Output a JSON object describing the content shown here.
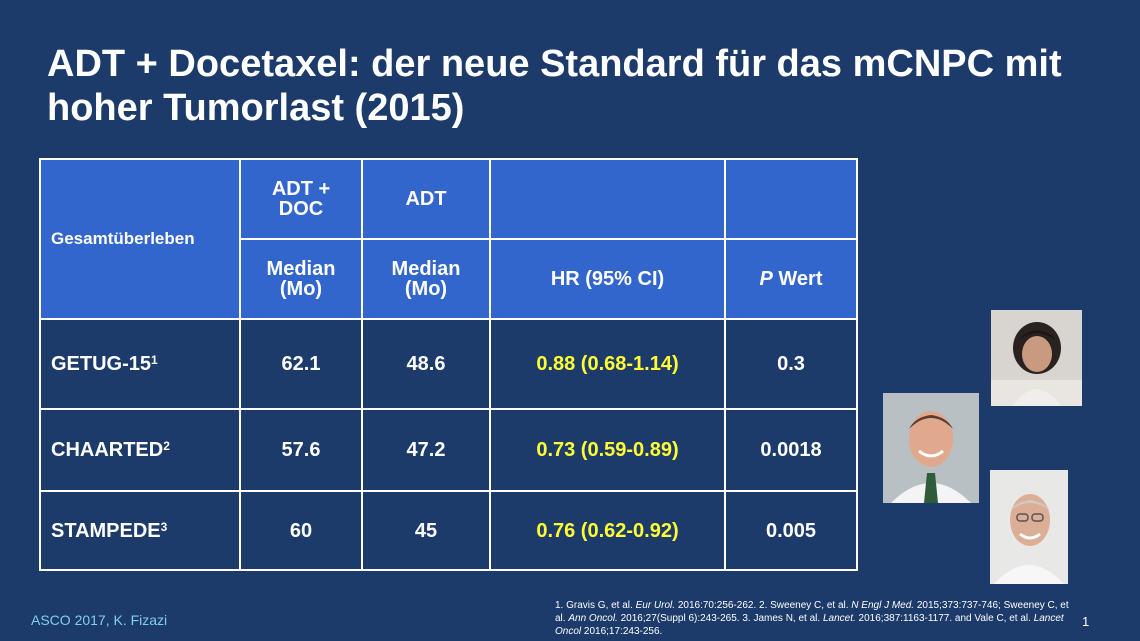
{
  "slide": {
    "title": "ADT + Docetaxel: der neue Standard für das mCNPC mit hoher Tumorlast (2015)"
  },
  "table": {
    "corner_header": "Gesamtüberleben",
    "group_headers": [
      "ADT + DOC",
      "ADT",
      ""
    ],
    "sub_headers": {
      "median_doc": "Median (Mo)",
      "median_adt": "Median (Mo)",
      "hr": "HR (95% CI)",
      "p_italic": "P",
      "p_rest": " Wert"
    },
    "rows": [
      {
        "study": "GETUG-15",
        "ref": "1",
        "adt_doc": "62.1",
        "adt": "48.6",
        "hr": "0.88 (0.68-1.14)",
        "p": "0.3"
      },
      {
        "study": "CHAARTED",
        "ref": "2",
        "adt_doc": "57.6",
        "adt": "47.2",
        "hr": "0.73 (0.59-0.89)",
        "p": "0.0018"
      },
      {
        "study": "STAMPEDE",
        "ref": "3",
        "adt_doc": "60",
        "adt": "45",
        "hr": "0.76 (0.62-0.92)",
        "p": "0.005"
      }
    ]
  },
  "footer": {
    "left": "ASCO 2017, K. Fizazi",
    "page": "1",
    "refs": {
      "r1a": "1. Gravis G, et al. ",
      "r1j": "Eur Urol.",
      "r1b": " 2016:70:256-262. 2. Sweeney C, et al. ",
      "r2j": "N Engl J Med.",
      "r2b": " 2015;373:737-746; Sweeney C, et al. ",
      "r3j": "Ann Oncol.",
      "r3b": " 2016;27(Suppl 6):243-265. 3. James N, et al. ",
      "r4j": "Lancet.",
      "r4b": " 2016;387:1163-1177. and Vale C, et al. ",
      "r5j": "Lancet Oncol",
      "r5b": " 2016;17:243-256."
    }
  },
  "colors": {
    "background": "#1c3a6a",
    "header_fill": "#3366cc",
    "hr_highlight": "#ffff33",
    "footer_text": "#7fd1ec"
  }
}
